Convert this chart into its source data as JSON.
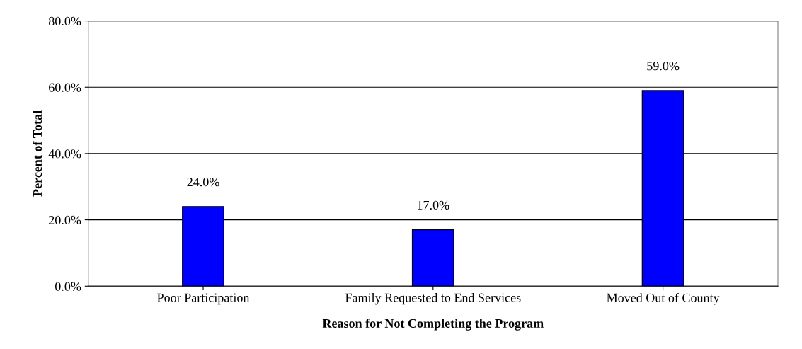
{
  "chart_data": {
    "type": "bar",
    "xlabel": "Reason for Not Completing the Program",
    "ylabel": "Percent of Total",
    "categories": [
      "Poor Participation",
      "Family Requested to End Services",
      "Moved Out of County"
    ],
    "values": [
      24.0,
      17.0,
      59.0
    ],
    "color": "#0000ff",
    "value_labels": [
      "24.0%",
      "17.0%",
      "59.0%"
    ],
    "ylim": [
      0,
      80
    ],
    "yticks": [
      {
        "value": 0,
        "label": "0.0%"
      },
      {
        "value": 20,
        "label": "20.0%"
      },
      {
        "value": 40,
        "label": "40.0%"
      },
      {
        "value": 60,
        "label": "60.0%"
      },
      {
        "value": 80,
        "label": "80.0%"
      }
    ],
    "grid": "y"
  }
}
